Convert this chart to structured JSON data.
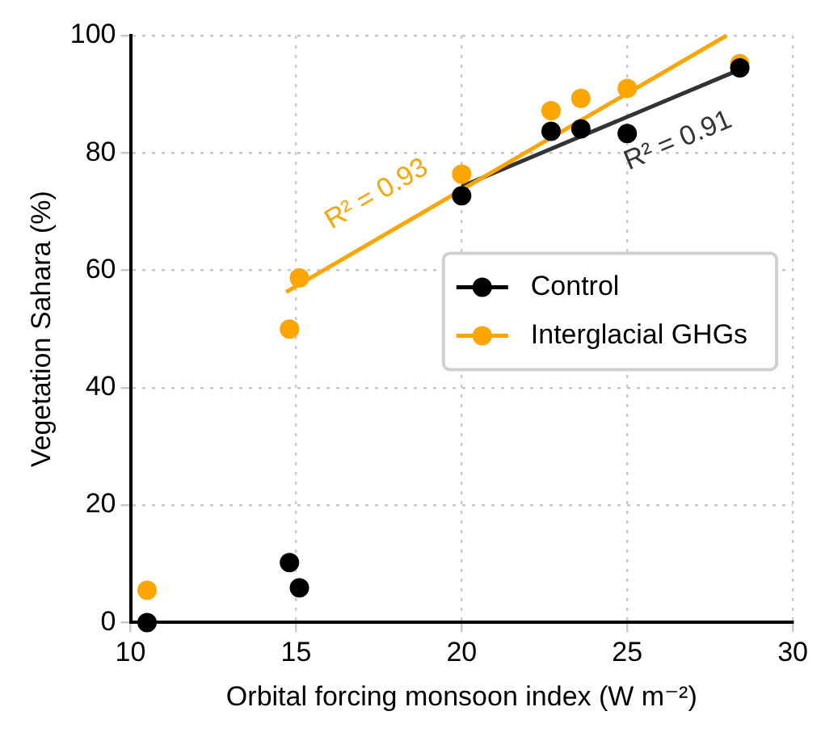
{
  "chart_data": {
    "type": "scatter",
    "xlabel": "Orbital forcing monsoon index (W m⁻²)",
    "ylabel": "Vegetation Sahara (%)",
    "series": [
      {
        "name": "Control",
        "color": "#000000",
        "x": [
          10.5,
          14.8,
          15.1,
          20.0,
          22.7,
          23.6,
          25.0,
          28.4
        ],
        "values": [
          0,
          10.2,
          5.9,
          72.7,
          83.7,
          84.1,
          83.3,
          94.5
        ]
      },
      {
        "name": "Interglacial GHGs",
        "color": "#ffa500",
        "x": [
          10.5,
          14.8,
          15.1,
          20.0,
          22.7,
          23.6,
          25.0,
          28.4
        ],
        "values": [
          5.5,
          50.0,
          58.7,
          76.4,
          87.2,
          89.3,
          91.0,
          95.2
        ]
      },
      {
        "color": "#ffa500",
        "type": "line",
        "marker": "none",
        "x": [
          14.7,
          28.0
        ],
        "values": [
          56.3,
          100
        ]
      },
      {
        "color": "#333333",
        "type": "line",
        "marker": "none",
        "x": [
          20.0,
          28.4
        ],
        "values": [
          74.3,
          94.2
        ]
      }
    ],
    "annotations": [
      "R² = 0.93",
      "R² = 0.91"
    ],
    "xlim": [
      10,
      30
    ],
    "xticks": [
      10,
      15,
      20,
      25,
      30
    ],
    "ylim": [
      0,
      100
    ],
    "yticks": [
      0,
      20,
      40,
      60,
      80,
      100
    ],
    "grid": true,
    "legend": "right",
    "marker": "circle"
  }
}
